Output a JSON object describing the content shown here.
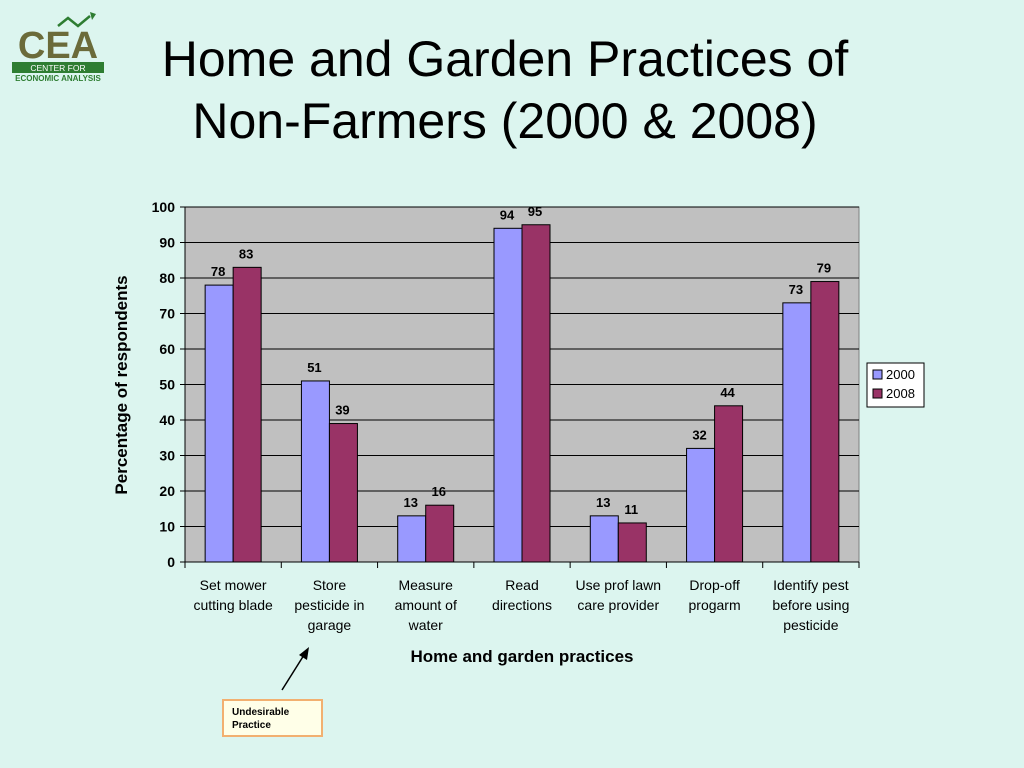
{
  "logo": {
    "text": "CEA",
    "line1": "CENTER FOR",
    "line2": "ECONOMIC ANALYSIS",
    "icon": "growth-arrow-icon",
    "color": "#2e7d32"
  },
  "slide": {
    "title_line1": "Home and Garden Practices of",
    "title_line2": "Non-Farmers (2000 & 2008)"
  },
  "chart_data": {
    "type": "bar",
    "title": "",
    "xlabel": "Home and garden practices",
    "ylabel": "Percentage of respondents",
    "ylim": [
      0,
      100
    ],
    "yticks": [
      0,
      10,
      20,
      30,
      40,
      50,
      60,
      70,
      80,
      90,
      100
    ],
    "grid": true,
    "legend_position": "right",
    "categories": [
      [
        "Set mower",
        "cutting blade"
      ],
      [
        "Store",
        "pesticide in",
        "garage"
      ],
      [
        "Measure",
        "amount of",
        "water"
      ],
      [
        "Read",
        "directions"
      ],
      [
        "Use prof lawn",
        "care provider"
      ],
      [
        "Drop-off",
        "progarm"
      ],
      [
        "Identify pest",
        "before using",
        "pesticide"
      ]
    ],
    "series": [
      {
        "name": "2000",
        "color": "#9999ff",
        "values": [
          78,
          51,
          13,
          94,
          13,
          32,
          73
        ]
      },
      {
        "name": "2008",
        "color": "#993366",
        "values": [
          83,
          39,
          16,
          95,
          11,
          44,
          79
        ]
      }
    ]
  },
  "callout": {
    "line1": "Undesirable",
    "line2": "Practice"
  }
}
